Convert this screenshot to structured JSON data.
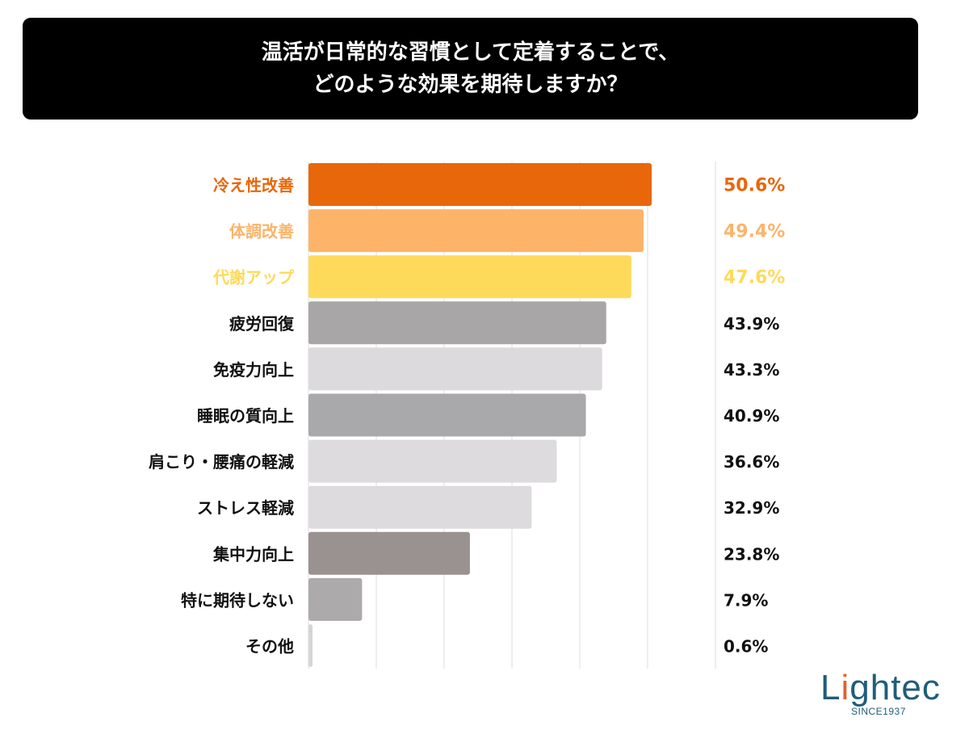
{
  "chart_data": {
    "type": "bar",
    "orientation": "horizontal",
    "title": [
      "温活が日常的な習慣として定着することで、",
      "どのような効果を期待しますか？"
    ],
    "categories": [
      "冷え性改善",
      "体調改善",
      "代謝アップ",
      "疲労回復",
      "免疫力向上",
      "睡眠の質向上",
      "肩こり・腰痛の軽減",
      "ストレス軽減",
      "集中力向上",
      "特に期待しない",
      "その他"
    ],
    "values": [
      50.6,
      49.4,
      47.6,
      43.9,
      43.3,
      40.9,
      36.6,
      32.9,
      23.8,
      7.9,
      0.6
    ],
    "value_labels": [
      "50.6%",
      "49.4%",
      "47.6%",
      "43.9%",
      "43.3%",
      "40.9%",
      "36.6%",
      "32.9%",
      "23.8%",
      "7.9%",
      "0.6%"
    ],
    "bar_colors": [
      "#E8670A",
      "#FDB469",
      "#FEDA5A",
      "#A8A6A7",
      "#DCDADC",
      "#A9A8AA",
      "#DDDBDD",
      "#DDDBDD",
      "#9A9290",
      "#ACAAAB",
      "#D6D4D6"
    ],
    "label_colors": [
      "#E8670A",
      "#FDB469",
      "#FEDA5A",
      "#111111",
      "#111111",
      "#111111",
      "#111111",
      "#111111",
      "#111111",
      "#111111",
      "#111111"
    ],
    "xlim": [
      0,
      60
    ],
    "grid": true,
    "unit": "%"
  },
  "logo": {
    "name": "Lightec",
    "tagline": "SINCE1937"
  }
}
